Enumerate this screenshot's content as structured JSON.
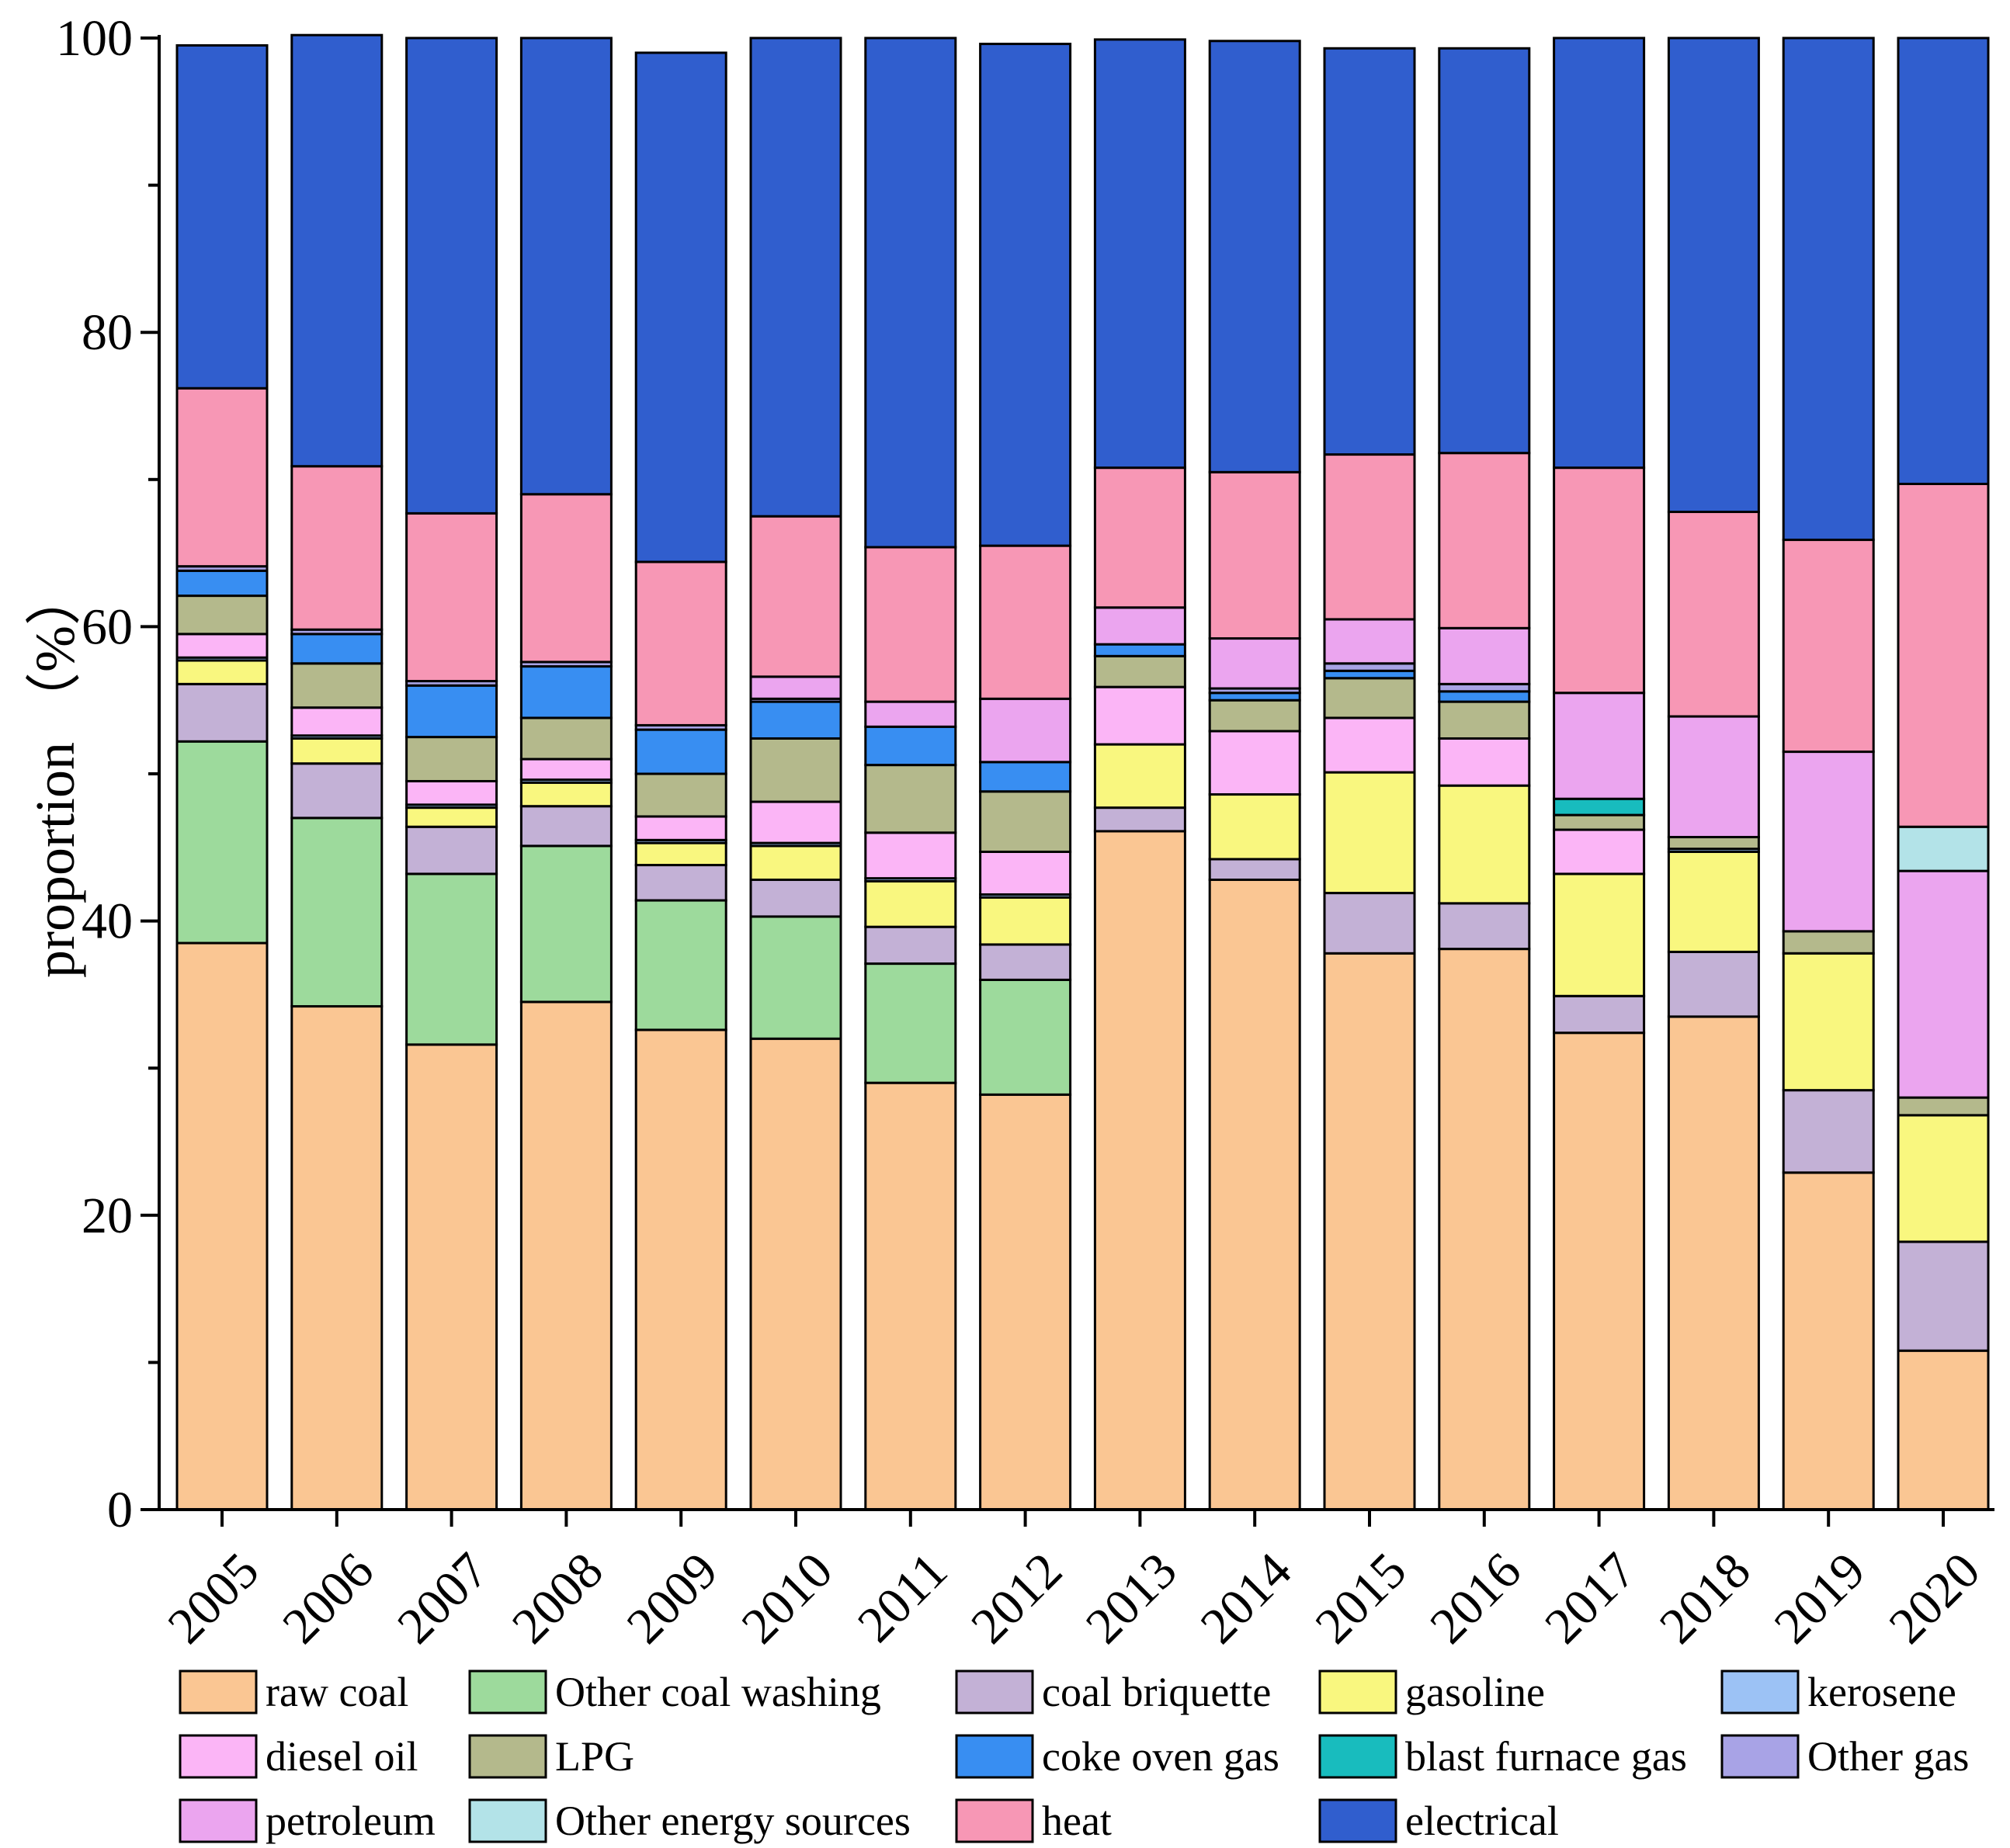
{
  "chart_data": {
    "type": "stacked-bar",
    "title": "",
    "xlabel": "",
    "ylabel": "proportion （%）",
    "ylim": [
      0,
      100
    ],
    "yticks": [
      "0",
      "20",
      "40",
      "60",
      "80",
      "100"
    ],
    "categories": [
      "2005",
      "2006",
      "2007",
      "2008",
      "2009",
      "2010",
      "2011",
      "2012",
      "2013",
      "2014",
      "2015",
      "2016",
      "2017",
      "2018",
      "2019",
      "2020"
    ],
    "series": [
      {
        "name": "raw coal",
        "color": "#FAC693",
        "values": [
          38.5,
          34.2,
          31.6,
          34.5,
          32.6,
          32.0,
          29.0,
          28.2,
          46.1,
          42.8,
          37.8,
          38.1,
          32.4,
          33.5,
          22.9,
          10.8
        ]
      },
      {
        "name": "Other coal washing",
        "color": "#9DDA9C",
        "values": [
          13.7,
          12.8,
          11.6,
          10.6,
          8.8,
          8.3,
          8.1,
          7.8,
          0,
          0,
          0,
          0,
          0,
          0,
          0,
          0
        ]
      },
      {
        "name": "coal briquette",
        "color": "#C3B1D6",
        "values": [
          3.9,
          3.7,
          3.2,
          2.7,
          2.4,
          2.5,
          2.5,
          2.4,
          1.6,
          1.4,
          4.1,
          3.1,
          2.5,
          4.4,
          5.6,
          7.4
        ]
      },
      {
        "name": "gasoline",
        "color": "#F9F77F",
        "values": [
          1.6,
          1.7,
          1.3,
          1.6,
          1.5,
          2.3,
          3.1,
          3.2,
          4.3,
          4.4,
          8.2,
          8.0,
          8.3,
          6.8,
          9.3,
          8.6
        ]
      },
      {
        "name": "kerosene",
        "color": "#9CC2F5",
        "values": [
          0.2,
          0.2,
          0.2,
          0.2,
          0.2,
          0.2,
          0.2,
          0.2,
          0,
          0,
          0,
          0,
          0,
          0.2,
          0,
          0
        ]
      },
      {
        "name": "diesel oil",
        "color": "#FBB5F6",
        "values": [
          1.6,
          1.9,
          1.6,
          1.4,
          1.6,
          2.8,
          3.1,
          2.9,
          3.9,
          4.3,
          3.7,
          3.2,
          3.0,
          0,
          0,
          0
        ]
      },
      {
        "name": "LPG",
        "color": "#B4B98C",
        "values": [
          2.6,
          3.0,
          3.0,
          2.8,
          2.9,
          4.3,
          4.6,
          4.1,
          2.1,
          2.1,
          2.7,
          2.5,
          1.0,
          0.8,
          1.5,
          1.2
        ]
      },
      {
        "name": "coke oven gas",
        "color": "#388EF2",
        "values": [
          1.7,
          2.0,
          3.5,
          3.5,
          3.0,
          2.5,
          2.6,
          2.0,
          0.8,
          0.5,
          0.5,
          0.7,
          0,
          0,
          0,
          0
        ]
      },
      {
        "name": "blast furnace gas",
        "color": "#18BCBE",
        "values": [
          0,
          0,
          0,
          0,
          0,
          0,
          0,
          0,
          0,
          0,
          0,
          0,
          1.1,
          0,
          0,
          0
        ]
      },
      {
        "name": "Other gas",
        "color": "#A8A3E6",
        "values": [
          0.3,
          0.3,
          0.3,
          0.3,
          0.3,
          0.2,
          0,
          0,
          0,
          0.3,
          0.5,
          0.5,
          0,
          0,
          0,
          0
        ]
      },
      {
        "name": "petroleum",
        "color": "#EBA5EF",
        "values": [
          0,
          0,
          0,
          0,
          0,
          1.5,
          1.7,
          4.3,
          2.5,
          3.4,
          3.0,
          3.8,
          7.2,
          8.2,
          12.2,
          15.4
        ]
      },
      {
        "name": "Other energy sources",
        "color": "#B3E3E8",
        "values": [
          0,
          0,
          0,
          0,
          0,
          0,
          0,
          0,
          0,
          0,
          0,
          0,
          0,
          0,
          0,
          3.0
        ]
      },
      {
        "name": "heat",
        "color": "#F797B5",
        "values": [
          12.1,
          11.1,
          11.4,
          11.4,
          11.1,
          10.9,
          10.5,
          10.4,
          9.5,
          11.3,
          11.2,
          11.9,
          15.3,
          13.9,
          14.4,
          23.3
        ]
      },
      {
        "name": "electrical",
        "color": "#305ECE",
        "values": [
          23.3,
          29.3,
          32.3,
          31.0,
          34.6,
          32.5,
          34.6,
          34.1,
          29.1,
          29.3,
          27.6,
          27.5,
          29.2,
          32.2,
          34.1,
          30.3
        ]
      }
    ],
    "legend": "bottom",
    "grid": false
  }
}
